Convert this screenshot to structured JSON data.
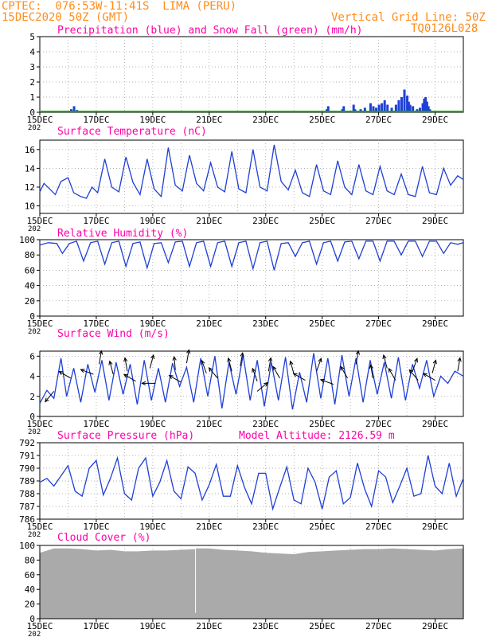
{
  "header": {
    "line1": "CPTEC:  076:53W-11:41S  LIMA (PERU)",
    "line2": "15DEC2020 50Z (GMT)",
    "right1": "Vertical Grid Line: 50Z",
    "right2": "TQ0126L028"
  },
  "x_tick_labels": [
    "15DEC",
    "17DEC",
    "19DEC",
    "21DEC",
    "23DEC",
    "25DEC",
    "27DEC",
    "29DEC"
  ],
  "x_year_label": "202",
  "colors": {
    "title": "#ff00aa",
    "header": "#ff8c1a",
    "series": "#1f3fd6",
    "snow": "#00aa00",
    "cloud": "#aaaaaa"
  },
  "chart_data": [
    {
      "id": "precip",
      "type": "bar",
      "title": "Precipitation (blue) and Snow Fall (green) (mm/h)",
      "ylim": [
        0,
        5
      ],
      "yticks": [
        0,
        1,
        2,
        3,
        4,
        5
      ],
      "x_unit": "days since 15DEC 00Z",
      "x": [
        1.1,
        1.2,
        1.3,
        10.15,
        10.2,
        10.7,
        10.75,
        11.1,
        11.15,
        11.35,
        11.5,
        11.7,
        11.8,
        11.9,
        12.0,
        12.1,
        12.2,
        12.3,
        12.45,
        12.6,
        12.7,
        12.8,
        12.9,
        13.0,
        13.05,
        13.1,
        13.2,
        13.35,
        13.45,
        13.55,
        13.6,
        13.65,
        13.7,
        13.75,
        13.8
      ],
      "values": [
        0.2,
        0.4,
        0.15,
        0.2,
        0.4,
        0.2,
        0.4,
        0.5,
        0.2,
        0.2,
        0.3,
        0.6,
        0.4,
        0.3,
        0.5,
        0.6,
        0.8,
        0.5,
        0.3,
        0.5,
        0.8,
        1.0,
        1.5,
        1.1,
        0.7,
        0.5,
        0.4,
        0.2,
        0.3,
        0.6,
        0.9,
        1.0,
        0.7,
        0.4,
        0.2
      ],
      "snow_values": 0
    },
    {
      "id": "temp",
      "type": "line",
      "title": "Surface Temperature (nC)",
      "ylim": [
        9.2,
        17
      ],
      "yticks": [
        10,
        12,
        14,
        16
      ],
      "x_unit": "days since 15DEC 00Z",
      "x": [
        0,
        0.15,
        0.35,
        0.55,
        0.75,
        1.0,
        1.2,
        1.45,
        1.65,
        1.85,
        2.05,
        2.3,
        2.55,
        2.8,
        3.05,
        3.3,
        3.55,
        3.8,
        4.05,
        4.3,
        4.55,
        4.8,
        5.05,
        5.3,
        5.55,
        5.8,
        6.05,
        6.3,
        6.55,
        6.8,
        7.05,
        7.3,
        7.55,
        7.8,
        8.05,
        8.3,
        8.55,
        8.8,
        9.05,
        9.3,
        9.55,
        9.8,
        10.05,
        10.3,
        10.55,
        10.8,
        11.05,
        11.3,
        11.55,
        11.8,
        12.05,
        12.3,
        12.55,
        12.8,
        13.05,
        13.3,
        13.55,
        13.8,
        14.05,
        14.3,
        14.55,
        14.8,
        15.0
      ],
      "values": [
        11.5,
        12.4,
        11.8,
        11.2,
        12.6,
        13.0,
        11.4,
        11.0,
        10.8,
        12.0,
        11.4,
        15.0,
        12.0,
        11.5,
        15.2,
        12.5,
        11.2,
        15.0,
        11.8,
        11.0,
        16.2,
        12.2,
        11.6,
        15.4,
        12.4,
        11.6,
        14.6,
        12.0,
        11.5,
        15.8,
        11.8,
        11.4,
        16.0,
        12.0,
        11.6,
        16.5,
        12.6,
        11.7,
        13.8,
        11.4,
        11.0,
        14.4,
        11.6,
        11.2,
        14.8,
        12.0,
        11.2,
        14.4,
        11.6,
        11.2,
        14.2,
        11.6,
        11.2,
        13.4,
        11.2,
        11.0,
        14.2,
        11.4,
        11.2,
        14.0,
        12.2,
        13.2,
        12.8
      ]
    },
    {
      "id": "rh",
      "type": "line",
      "title": "Relative Humidity (%)",
      "ylim": [
        0,
        100
      ],
      "yticks": [
        0,
        20,
        40,
        60,
        80,
        100
      ],
      "x_unit": "days since 15DEC 00Z",
      "x": [
        0,
        0.3,
        0.6,
        0.8,
        1.05,
        1.3,
        1.55,
        1.8,
        2.05,
        2.3,
        2.55,
        2.8,
        3.05,
        3.3,
        3.55,
        3.8,
        4.05,
        4.3,
        4.55,
        4.8,
        5.05,
        5.3,
        5.55,
        5.8,
        6.05,
        6.3,
        6.55,
        6.8,
        7.05,
        7.3,
        7.55,
        7.8,
        8.05,
        8.3,
        8.55,
        8.8,
        9.05,
        9.3,
        9.55,
        9.8,
        10.05,
        10.3,
        10.55,
        10.8,
        11.05,
        11.3,
        11.55,
        11.8,
        12.05,
        12.3,
        12.55,
        12.8,
        13.05,
        13.3,
        13.55,
        13.8,
        14.05,
        14.3,
        14.55,
        14.8,
        15.0
      ],
      "values": [
        93,
        96,
        95,
        82,
        95,
        98,
        72,
        96,
        98,
        68,
        96,
        98,
        65,
        95,
        97,
        63,
        95,
        96,
        70,
        97,
        98,
        65,
        96,
        98,
        65,
        96,
        98,
        65,
        96,
        98,
        62,
        96,
        98,
        60,
        95,
        96,
        78,
        96,
        98,
        68,
        96,
        98,
        72,
        97,
        98,
        75,
        98,
        98,
        72,
        98,
        98,
        80,
        98,
        98,
        78,
        98,
        98,
        82,
        96,
        94,
        96
      ]
    },
    {
      "id": "wind",
      "type": "line",
      "title": "Surface Wind (m/s)",
      "ylim": [
        0,
        6.5
      ],
      "yticks": [
        0,
        2,
        4,
        6
      ],
      "x_unit": "days since 15DEC 00Z",
      "x": [
        0,
        0.25,
        0.5,
        0.75,
        0.95,
        1.2,
        1.45,
        1.7,
        1.95,
        2.2,
        2.45,
        2.7,
        2.95,
        3.2,
        3.45,
        3.7,
        3.95,
        4.2,
        4.45,
        4.7,
        4.95,
        5.2,
        5.45,
        5.7,
        5.95,
        6.2,
        6.45,
        6.7,
        6.95,
        7.2,
        7.45,
        7.7,
        7.95,
        8.2,
        8.45,
        8.7,
        8.95,
        9.2,
        9.45,
        9.7,
        9.95,
        10.2,
        10.45,
        10.7,
        10.95,
        11.2,
        11.45,
        11.7,
        11.95,
        12.2,
        12.45,
        12.7,
        12.95,
        13.2,
        13.45,
        13.7,
        13.95,
        14.2,
        14.45,
        14.7,
        15.0
      ],
      "values": [
        1.3,
        2.6,
        1.8,
        5.8,
        2.0,
        4.8,
        1.4,
        5.2,
        2.4,
        5.6,
        1.6,
        5.4,
        2.2,
        5.2,
        1.2,
        5.6,
        1.6,
        4.8,
        1.4,
        5.3,
        3.0,
        4.9,
        1.4,
        5.8,
        2.0,
        6.0,
        0.8,
        5.4,
        2.2,
        6.1,
        1.6,
        5.6,
        1.0,
        5.4,
        1.6,
        5.9,
        0.7,
        4.4,
        1.4,
        6.3,
        1.8,
        5.8,
        1.2,
        6.1,
        2.0,
        5.8,
        1.4,
        5.6,
        2.2,
        5.4,
        1.8,
        5.9,
        1.6,
        5.2,
        2.8,
        5.6,
        2.0,
        4.0,
        3.3,
        4.5,
        4.0
      ],
      "arrows": [
        {
          "x": 0.5,
          "v": 2.5,
          "dir_deg": 220
        },
        {
          "x": 1.1,
          "v": 3.8,
          "dir_deg": 300
        },
        {
          "x": 1.9,
          "v": 4.2,
          "dir_deg": 290
        },
        {
          "x": 2.1,
          "v": 5.2,
          "dir_deg": 10
        },
        {
          "x": 2.6,
          "v": 4.2,
          "dir_deg": 345
        },
        {
          "x": 3.1,
          "v": 4.5,
          "dir_deg": 350
        },
        {
          "x": 3.4,
          "v": 3.5,
          "dir_deg": 300
        },
        {
          "x": 3.9,
          "v": 4.8,
          "dir_deg": 15
        },
        {
          "x": 4.1,
          "v": 3.3,
          "dir_deg": 270
        },
        {
          "x": 4.8,
          "v": 4.6,
          "dir_deg": 355
        },
        {
          "x": 5.0,
          "v": 3.4,
          "dir_deg": 300
        },
        {
          "x": 5.2,
          "v": 5.3,
          "dir_deg": 10
        },
        {
          "x": 5.9,
          "v": 4.3,
          "dir_deg": 340
        },
        {
          "x": 6.3,
          "v": 3.8,
          "dir_deg": 320
        },
        {
          "x": 6.8,
          "v": 4.5,
          "dir_deg": 345
        },
        {
          "x": 7.1,
          "v": 5.0,
          "dir_deg": 10
        },
        {
          "x": 7.7,
          "v": 3.5,
          "dir_deg": 340
        },
        {
          "x": 7.7,
          "v": 2.5,
          "dir_deg": 50
        },
        {
          "x": 8.1,
          "v": 4.5,
          "dir_deg": 10
        },
        {
          "x": 8.5,
          "v": 3.8,
          "dir_deg": 330
        },
        {
          "x": 9.0,
          "v": 4.2,
          "dir_deg": 345
        },
        {
          "x": 9.4,
          "v": 3.6,
          "dir_deg": 300
        },
        {
          "x": 9.8,
          "v": 4.5,
          "dir_deg": 20
        },
        {
          "x": 10.4,
          "v": 3.2,
          "dir_deg": 290
        },
        {
          "x": 10.9,
          "v": 3.8,
          "dir_deg": 330
        },
        {
          "x": 11.2,
          "v": 5.2,
          "dir_deg": 10
        },
        {
          "x": 11.8,
          "v": 3.8,
          "dir_deg": 350
        },
        {
          "x": 12.3,
          "v": 4.8,
          "dir_deg": 345
        },
        {
          "x": 12.6,
          "v": 3.6,
          "dir_deg": 330
        },
        {
          "x": 13.2,
          "v": 4.5,
          "dir_deg": 20
        },
        {
          "x": 13.4,
          "v": 3.6,
          "dir_deg": 320
        },
        {
          "x": 13.9,
          "v": 4.3,
          "dir_deg": 15
        },
        {
          "x": 14.0,
          "v": 3.6,
          "dir_deg": 300
        },
        {
          "x": 14.8,
          "v": 4.5,
          "dir_deg": 10
        }
      ]
    },
    {
      "id": "pressure",
      "type": "line",
      "title": "Surface Pressure (hPa)",
      "annotation": "Model Altitude: 2126.59 m",
      "ylim": [
        786,
        792
      ],
      "yticks": [
        786,
        787,
        788,
        789,
        790,
        791,
        792
      ],
      "x_unit": "days since 15DEC 00Z",
      "x": [
        0,
        0.25,
        0.5,
        0.75,
        1.0,
        1.25,
        1.5,
        1.75,
        2.0,
        2.25,
        2.5,
        2.75,
        3.0,
        3.25,
        3.5,
        3.75,
        4.0,
        4.25,
        4.5,
        4.75,
        5.0,
        5.25,
        5.5,
        5.75,
        6.0,
        6.25,
        6.5,
        6.75,
        7.0,
        7.25,
        7.5,
        7.75,
        8.0,
        8.25,
        8.5,
        8.75,
        9.0,
        9.25,
        9.5,
        9.75,
        10.0,
        10.25,
        10.5,
        10.75,
        11.0,
        11.25,
        11.5,
        11.75,
        12.0,
        12.25,
        12.5,
        12.75,
        13.0,
        13.25,
        13.5,
        13.75,
        14.0,
        14.25,
        14.5,
        14.75,
        15.0
      ],
      "values": [
        788.9,
        789.2,
        788.6,
        789.4,
        790.2,
        788.2,
        787.8,
        790.0,
        790.6,
        787.9,
        789.2,
        790.8,
        788.0,
        787.5,
        790.0,
        790.8,
        787.8,
        788.9,
        790.6,
        788.2,
        787.6,
        790.1,
        789.6,
        787.5,
        788.7,
        790.3,
        787.8,
        787.8,
        790.2,
        788.5,
        787.2,
        789.6,
        789.6,
        786.8,
        788.5,
        790.1,
        787.5,
        787.2,
        790.0,
        788.9,
        786.8,
        789.3,
        789.8,
        787.2,
        787.7,
        790.4,
        788.4,
        787.0,
        789.8,
        789.3,
        787.3,
        788.6,
        790.0,
        787.8,
        788.0,
        791.0,
        788.6,
        788.0,
        790.4,
        787.8,
        789.2
      ]
    },
    {
      "id": "cloud",
      "type": "area",
      "title": "Cloud Cover (%)",
      "ylim": [
        0,
        100
      ],
      "yticks": [
        0,
        20,
        40,
        60,
        80,
        100
      ],
      "x_unit": "days since 15DEC 00Z",
      "x": [
        0,
        0.5,
        1.0,
        1.5,
        2.0,
        2.5,
        3.0,
        3.5,
        4.0,
        4.5,
        5.0,
        5.5,
        5.5,
        5.53,
        5.53,
        6.0,
        6.5,
        7.0,
        7.5,
        8.0,
        8.5,
        9.0,
        9.5,
        10.0,
        10.5,
        11.0,
        11.5,
        12.0,
        12.5,
        13.0,
        13.5,
        14.0,
        14.5,
        15.0
      ],
      "values": [
        90,
        96,
        96,
        95,
        93,
        94,
        92,
        92,
        93,
        93,
        94,
        95,
        8,
        8,
        96,
        96,
        94,
        93,
        92,
        90,
        89,
        88,
        91,
        92,
        93,
        94,
        95,
        95,
        96,
        95,
        94,
        93,
        95,
        96
      ]
    }
  ]
}
